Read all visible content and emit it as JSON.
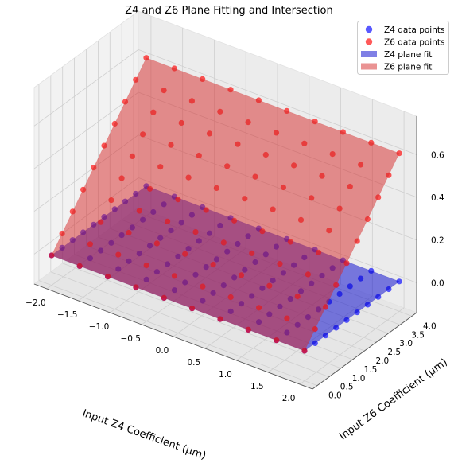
{
  "chart_data": {
    "type": "scatter",
    "title": "Z4 and Z6 Plane Fitting and Intersection",
    "xlabel": "Input Z4 Coefficient (μm)",
    "ylabel": "Input Z6 Coefficient (μm)",
    "zlabel": "",
    "xlim": [
      -2.2,
      2.2
    ],
    "ylim": [
      -0.2,
      4.2
    ],
    "zlim": [
      -0.14,
      0.78
    ],
    "x_ticks": [
      "−2.0",
      "−1.5",
      "−1.0",
      "−0.5",
      "0.0",
      "0.5",
      "1.0",
      "1.5",
      "2.0"
    ],
    "x_tick_values": [
      -2.0,
      -1.5,
      -1.0,
      -0.5,
      0.0,
      0.5,
      1.0,
      1.5,
      2.0
    ],
    "y_ticks": [
      "0.0",
      "0.5",
      "1.0",
      "1.5",
      "2.0",
      "2.5",
      "3.0",
      "3.5",
      "4.0"
    ],
    "y_tick_values": [
      0.0,
      0.5,
      1.0,
      1.5,
      2.0,
      2.5,
      3.0,
      3.5,
      4.0
    ],
    "z_ticks": [
      "0.0",
      "0.2",
      "0.4",
      "0.6"
    ],
    "z_tick_values": [
      0.0,
      0.2,
      0.4,
      0.6
    ],
    "grid": true,
    "legend_position": "top-right",
    "grid_x": [
      -2.0,
      -1.5556,
      -1.1111,
      -0.6667,
      -0.2222,
      0.2222,
      0.6667,
      1.1111,
      1.5556,
      2.0
    ],
    "grid_y": [
      0.0,
      0.4444,
      0.8889,
      1.3333,
      1.7778,
      2.2222,
      2.6667,
      3.1111,
      3.5556,
      4.0
    ],
    "series": [
      {
        "name": "Z4 data points",
        "kind": "points",
        "color": "#0000ff",
        "plane": {
          "a": 0.0,
          "b": 0.0,
          "c": 0.0
        },
        "noise": [
          0.0,
          0.0,
          0.0,
          0.0,
          0.0,
          0.0,
          0.0,
          0.0,
          0.0,
          0.0
        ]
      },
      {
        "name": "Z6 data points",
        "kind": "points",
        "color": "#ff0000",
        "plane": {
          "a": 0.0,
          "b": 0.15,
          "c": 0.0
        },
        "noise": [
          0.0,
          0.0,
          0.0,
          0.0,
          0.0,
          0.0,
          0.0,
          0.0,
          0.0,
          0.0
        ]
      },
      {
        "name": "Z4 plane fit",
        "kind": "plane",
        "color": "#0000cc",
        "plane": {
          "a": 0.0,
          "b": 0.0,
          "c": 0.0
        }
      },
      {
        "name": "Z6 plane fit",
        "kind": "plane",
        "color": "#d62728",
        "plane": {
          "a": 0.0,
          "b": 0.15,
          "c": 0.0
        }
      }
    ]
  }
}
